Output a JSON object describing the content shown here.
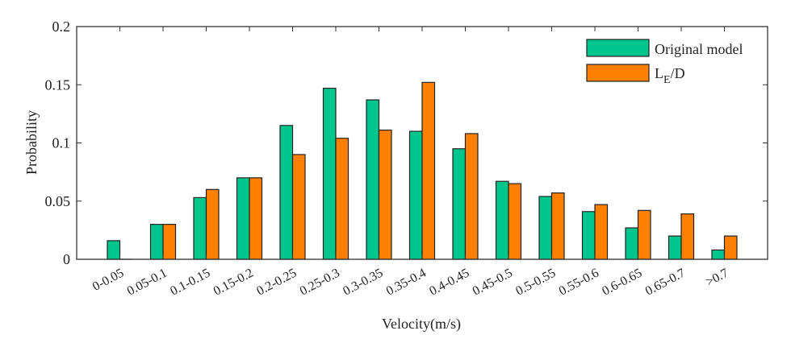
{
  "chart_data": {
    "type": "bar",
    "title": "",
    "xlabel": "Velocity(m/s)",
    "ylabel": "Probability",
    "ylim": [
      0,
      0.2
    ],
    "yticks": [
      "0",
      "0.05",
      "0.1",
      "0.15",
      "0.2"
    ],
    "ytick_values": [
      0,
      0.05,
      0.1,
      0.15,
      0.2
    ],
    "categories": [
      "0-0.05",
      "0.05-0.1",
      "0.1-0.15",
      "0.15-0.2",
      "0.2-0.25",
      "0.25-0.3",
      "0.3-0.35",
      "0.35-0.4",
      "0.4-0.45",
      "0.45-0.5",
      "0.5-0.55",
      "0.55-0.6",
      "0.6-0.65",
      "0.65-0.7",
      ">0.7"
    ],
    "series": [
      {
        "name": "Original model",
        "color": "#00c68c",
        "values": [
          0.016,
          0.03,
          0.053,
          0.07,
          0.115,
          0.147,
          0.137,
          0.11,
          0.095,
          0.067,
          0.054,
          0.041,
          0.027,
          0.02,
          0.008
        ]
      },
      {
        "name": "L_E/D",
        "label_main": "L",
        "label_sub": "E",
        "label_rest": "/D",
        "color": "#ff8000",
        "values": [
          0.0,
          0.03,
          0.06,
          0.07,
          0.09,
          0.104,
          0.111,
          0.152,
          0.108,
          0.065,
          0.057,
          0.047,
          0.042,
          0.039,
          0.02
        ]
      }
    ],
    "legend_position": "top-right",
    "grid": false
  }
}
